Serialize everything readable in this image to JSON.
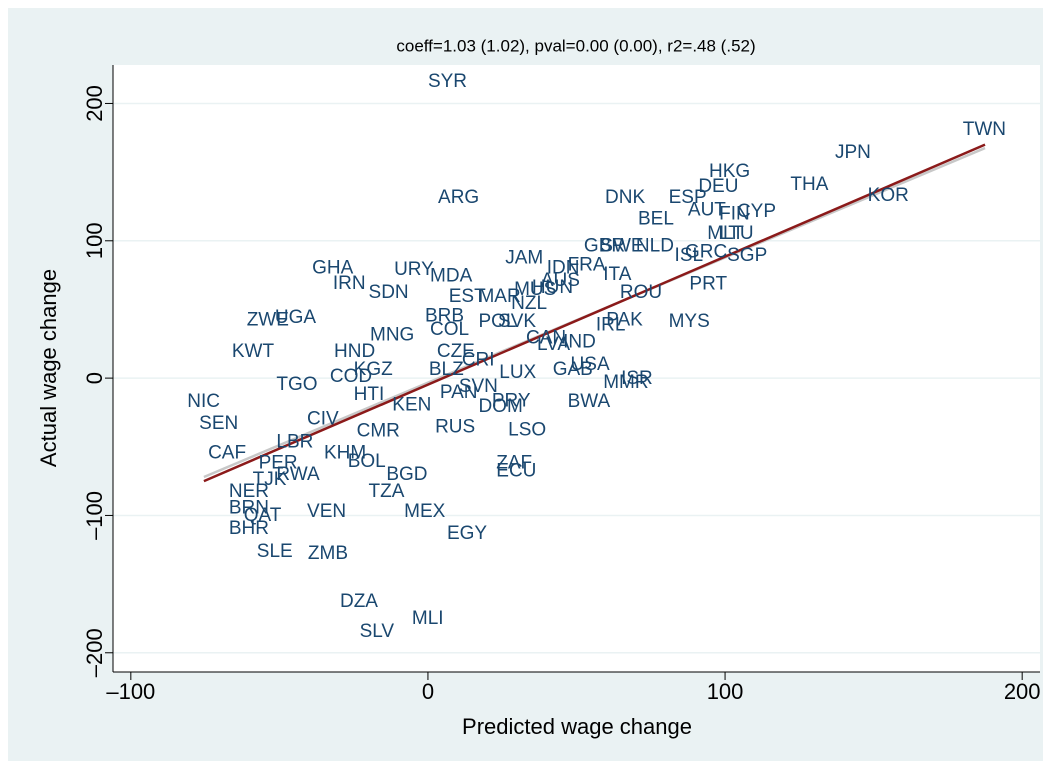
{
  "chart_data": {
    "type": "scatter",
    "title": "coeff=1.03 (1.02), pval=0.00 (0.00), r2=.48 (.52)",
    "x_label": "Predicted wage change",
    "y_label": "Actual wage change",
    "xlim": [
      -106,
      206
    ],
    "ylim": [
      -214,
      228
    ],
    "xticks": [
      {
        "value": -100,
        "label": "–100"
      },
      0,
      100,
      200
    ],
    "yticks": [
      {
        "value": -200,
        "label": "–200"
      },
      {
        "value": -100,
        "label": "–100"
      },
      0,
      100,
      200
    ],
    "grid": true,
    "series": [
      {
        "color": "#1a476f",
        "labels": [
          "SYR",
          "ARG",
          "DNK",
          "ESP",
          "HKG",
          "DEU",
          "AUT",
          "FIN",
          "CYP",
          "THA",
          "JPN",
          "TWN",
          "KOR",
          "BEL",
          "MLT",
          "LTU",
          "SGP",
          "GBR",
          "SWE",
          "NLD",
          "GRC",
          "ISL",
          "JAM",
          "IDN",
          "FRA",
          "ITA",
          "AUS",
          "GHA",
          "IRN",
          "URY",
          "MDA",
          "SDN",
          "EST",
          "MAR",
          "MUS",
          "HUN",
          "NZL",
          "PRT",
          "ROU",
          "PAK",
          "MYS",
          "IRL",
          "ZWE",
          "UGA",
          "KWT",
          "HND",
          "MNG",
          "BRB",
          "COL",
          "POL",
          "SVK",
          "LVA",
          "IND",
          "CAN",
          "COD",
          "KGZ",
          "CRI",
          "CZE",
          "BLZ",
          "TGO",
          "LUX",
          "GAB",
          "USA",
          "MMR",
          "ISR",
          "SVN",
          "PAN",
          "PRY",
          "DOM",
          "BWA",
          "NIC",
          "SEN",
          "CIV",
          "HTI",
          "KEN",
          "CMR",
          "RUS",
          "LSO",
          "CAF",
          "LBR",
          "KHM",
          "PER",
          "BOL",
          "BGD",
          "ZAF",
          "ECU",
          "TJK",
          "RWA",
          "TZA",
          "NER",
          "BRN",
          "QAT",
          "VEN",
          "MEX",
          "BHR",
          "EGY",
          "SLE",
          "ZMB",
          "DZA",
          "MLI",
          "SLV"
        ],
        "x": [
          0,
          3.4,
          59.6,
          81,
          94.6,
          91,
          87.5,
          98,
          104,
          122,
          137,
          180,
          148,
          70.7,
          94,
          98,
          100.7,
          52.5,
          58,
          70,
          86.5,
          83,
          26,
          40,
          47,
          59,
          38,
          -39,
          -32,
          -11.4,
          0.7,
          -20,
          7,
          17,
          29,
          35,
          28,
          88,
          64.6,
          60,
          81,
          56.5,
          -61,
          -51.5,
          -66,
          -31.6,
          -19.5,
          -1,
          0.7,
          17,
          23.6,
          36.7,
          45.5,
          33,
          -33,
          -25,
          11.4,
          3,
          0.3,
          -51,
          24,
          42,
          48,
          59,
          65,
          10.4,
          4,
          21.5,
          17,
          47,
          -81,
          -77,
          -40.7,
          -25,
          -12,
          -24,
          2.4,
          27,
          -74,
          -51,
          -35,
          -57,
          -27,
          -14,
          23,
          23,
          -59,
          -51,
          -20,
          -67,
          -67,
          -62,
          -40.7,
          -8,
          -67,
          6.4,
          -57.6,
          -40.4,
          -29.6,
          -5.4,
          -23
        ],
        "y": [
          215.6,
          131,
          131,
          131,
          150,
          139,
          122,
          119,
          121,
          140.5,
          164,
          180.6,
          132.5,
          115.5,
          105,
          105,
          89,
          96,
          96,
          96,
          91.5,
          89,
          87,
          80,
          82,
          75,
          70.6,
          80,
          68.5,
          78.7,
          74,
          62,
          59,
          59,
          64,
          65.5,
          54,
          68,
          62,
          42,
          41,
          38.5,
          42,
          43.7,
          19,
          19,
          31,
          45,
          35,
          41,
          41,
          24,
          26,
          29,
          0.7,
          6,
          13,
          19,
          6,
          -5,
          3.6,
          6,
          9.5,
          -3.6,
          -0.7,
          -6.5,
          -11,
          -17,
          -21,
          -17.5,
          -17.5,
          -33.5,
          -30,
          -12.4,
          -20,
          -39,
          -36,
          -38,
          -55,
          -47,
          -55,
          -62,
          -61,
          -70.6,
          -62,
          -68,
          -74,
          -70.6,
          -83,
          -83,
          -95,
          -100.5,
          -97.5,
          -97.5,
          -110,
          -113.6,
          -126.7,
          -128,
          -163,
          -175.5,
          -185
        ]
      }
    ],
    "fit_lines": [
      {
        "color": "#c8c8c8",
        "x": [
          -75.4,
          187.5
        ],
        "y": [
          -72,
          167.5
        ]
      },
      {
        "color": "#8b1a1a",
        "x": [
          -75.4,
          187.5
        ],
        "y": [
          -75,
          170
        ]
      }
    ]
  }
}
